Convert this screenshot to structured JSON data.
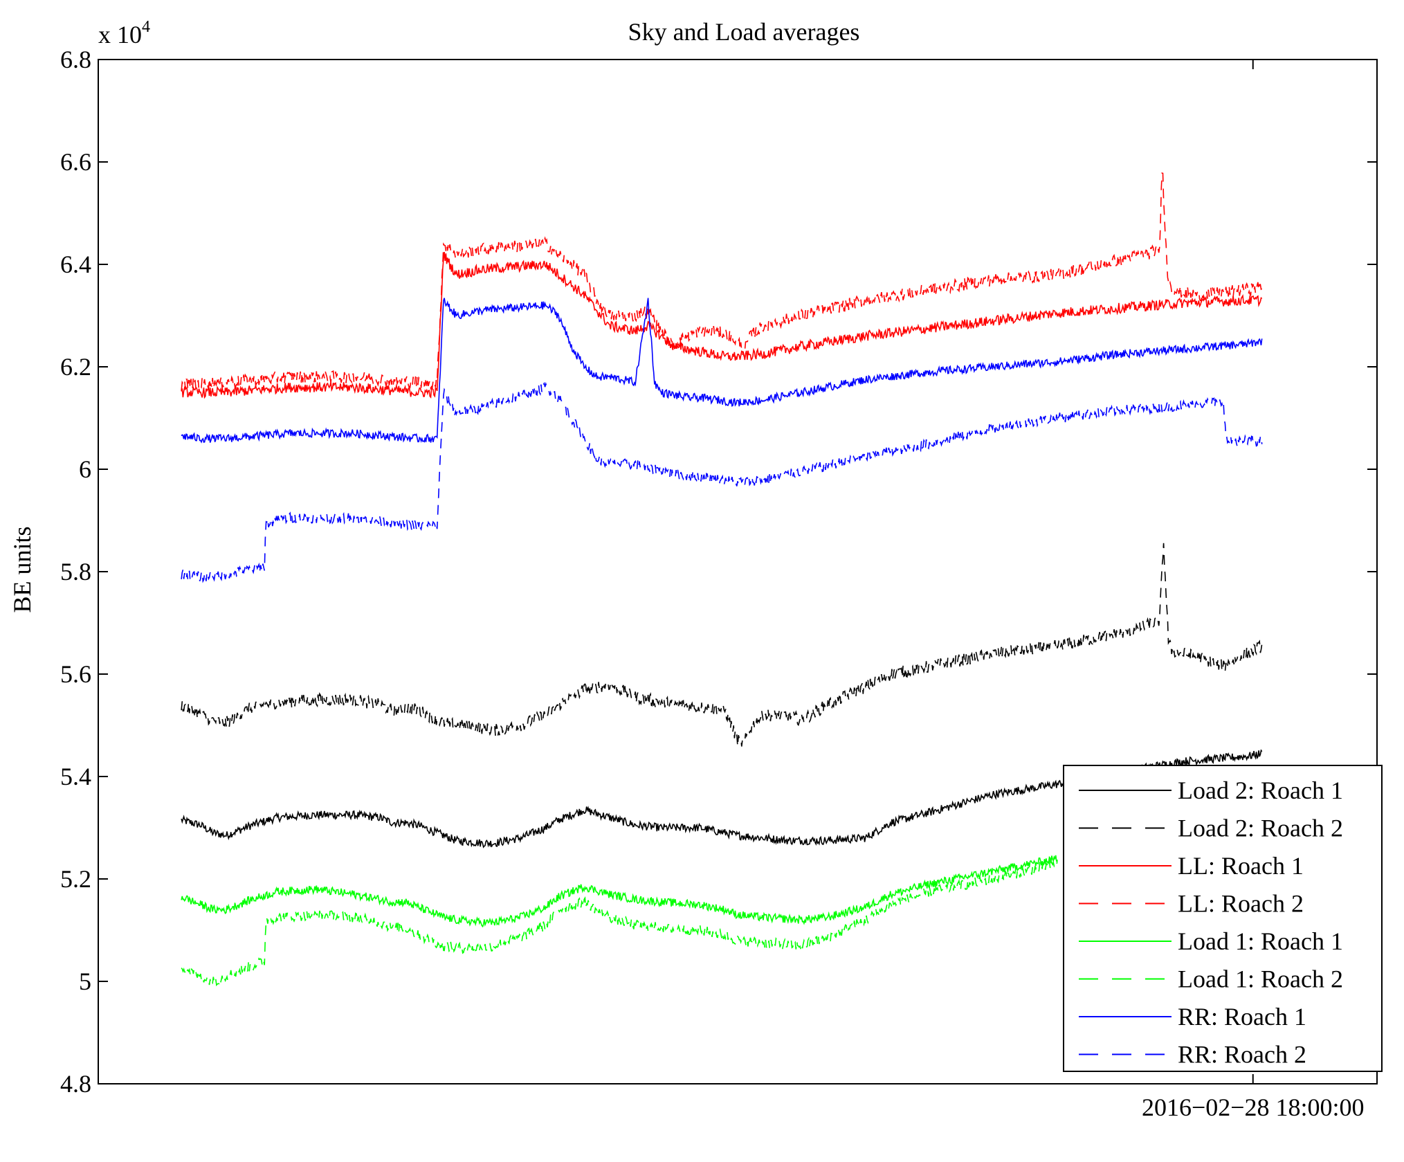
{
  "chart_data": {
    "type": "line",
    "title": "Sky and Load averages",
    "xlabel": "",
    "ylabel": "BE units",
    "y_exponent_label": "x 10",
    "y_exponent_power": "4",
    "ylim": [
      4.8,
      6.8
    ],
    "y_ticks": [
      4.8,
      5,
      5.2,
      5.4,
      5.6,
      5.8,
      6,
      6.2,
      6.4,
      6.6,
      6.8
    ],
    "y_tick_labels": [
      "4.8",
      "5",
      "5.2",
      "5.4",
      "5.6",
      "5.8",
      "6",
      "6.2",
      "6.4",
      "6.6",
      "6.8"
    ],
    "xlim": [
      0,
      100
    ],
    "x_ticks": [
      90.3
    ],
    "x_tick_labels": [
      "2016−02−28 18:00:00"
    ],
    "grid": false,
    "legend_position": "bottom-right",
    "series": [
      {
        "name": "Load 2: Roach 1",
        "color": "#000000",
        "dash": "solid",
        "noise": 0.008,
        "x": [
          6.5,
          8,
          9,
          10,
          12,
          14,
          17,
          20,
          22,
          23,
          24,
          25,
          27,
          28,
          30,
          31,
          33,
          35,
          36,
          38,
          40,
          42,
          44,
          47,
          49,
          50,
          52,
          54,
          55,
          57,
          60,
          62,
          65,
          70,
          75,
          80,
          85,
          90,
          91
        ],
        "y": [
          5.315,
          5.305,
          5.29,
          5.285,
          5.305,
          5.32,
          5.325,
          5.325,
          5.32,
          5.31,
          5.31,
          5.305,
          5.285,
          5.275,
          5.27,
          5.27,
          5.28,
          5.3,
          5.315,
          5.335,
          5.32,
          5.305,
          5.3,
          5.3,
          5.29,
          5.285,
          5.28,
          5.275,
          5.275,
          5.275,
          5.28,
          5.31,
          5.33,
          5.365,
          5.385,
          5.41,
          5.43,
          5.44,
          5.445
        ]
      },
      {
        "name": "Load 2: Roach 2",
        "color": "#000000",
        "dash": "dashed",
        "noise": 0.012,
        "x": [
          6.5,
          8,
          9,
          10,
          12,
          14,
          17,
          20,
          22,
          23,
          24,
          25,
          27,
          28,
          30,
          31,
          33,
          35,
          36,
          38,
          40,
          42,
          44,
          47,
          49,
          49.5,
          50,
          50.5,
          51,
          52,
          54,
          55,
          57,
          60,
          62,
          65,
          70,
          75,
          80,
          82,
          83,
          83.3,
          83.7,
          84,
          85,
          87,
          88,
          89,
          91
        ],
        "y": [
          5.54,
          5.52,
          5.51,
          5.505,
          5.535,
          5.545,
          5.55,
          5.55,
          5.54,
          5.53,
          5.535,
          5.53,
          5.505,
          5.5,
          5.495,
          5.49,
          5.5,
          5.52,
          5.54,
          5.57,
          5.58,
          5.555,
          5.545,
          5.535,
          5.53,
          5.5,
          5.47,
          5.465,
          5.495,
          5.52,
          5.52,
          5.51,
          5.54,
          5.575,
          5.6,
          5.615,
          5.64,
          5.655,
          5.68,
          5.695,
          5.705,
          5.86,
          5.66,
          5.645,
          5.64,
          5.625,
          5.615,
          5.63,
          5.655
        ]
      },
      {
        "name": "LL: Roach 1",
        "color": "#ff0000",
        "dash": "solid",
        "noise": 0.01,
        "x": [
          6.5,
          10,
          15,
          20,
          25,
          26.5,
          27,
          28,
          30,
          35,
          36,
          38,
          40,
          42,
          43,
          45,
          46,
          47,
          48,
          49,
          50,
          52,
          55,
          60,
          65,
          70,
          75,
          80,
          85,
          90,
          91
        ],
        "y": [
          6.15,
          6.15,
          6.16,
          6.16,
          6.15,
          6.15,
          6.42,
          6.38,
          6.39,
          6.4,
          6.38,
          6.34,
          6.28,
          6.27,
          6.28,
          6.24,
          6.235,
          6.23,
          6.225,
          6.22,
          6.22,
          6.225,
          6.24,
          6.26,
          6.275,
          6.29,
          6.305,
          6.315,
          6.325,
          6.33,
          6.33
        ]
      },
      {
        "name": "LL: Roach 2",
        "color": "#ff0000",
        "dash": "dashed",
        "noise": 0.012,
        "x": [
          6.5,
          10,
          15,
          20,
          25,
          26.5,
          27,
          28,
          30,
          35,
          36,
          38,
          39,
          40,
          42,
          43,
          44,
          45,
          46,
          47,
          48,
          49,
          50,
          50.5,
          51,
          52,
          55,
          60,
          65,
          70,
          75,
          80,
          82,
          83,
          83.2,
          83.6,
          84,
          86,
          88,
          91
        ],
        "y": [
          6.165,
          6.17,
          6.18,
          6.18,
          6.17,
          6.17,
          6.44,
          6.42,
          6.43,
          6.44,
          6.42,
          6.38,
          6.33,
          6.3,
          6.3,
          6.31,
          6.27,
          6.24,
          6.26,
          6.27,
          6.27,
          6.265,
          6.25,
          6.23,
          6.26,
          6.28,
          6.3,
          6.33,
          6.35,
          6.37,
          6.38,
          6.41,
          6.42,
          6.43,
          6.6,
          6.38,
          6.35,
          6.34,
          6.345,
          6.355
        ]
      },
      {
        "name": "Load 1: Roach 1",
        "color": "#00ff00",
        "dash": "solid",
        "noise": 0.008,
        "x": [
          6.5,
          8,
          9,
          10,
          12,
          14,
          17,
          20,
          22,
          23,
          24,
          25,
          27,
          28,
          30,
          31,
          33,
          35,
          36,
          38,
          40,
          42,
          44,
          47,
          49,
          50,
          52,
          55,
          57,
          60,
          62,
          65,
          70,
          75
        ],
        "y": [
          5.165,
          5.15,
          5.14,
          5.14,
          5.16,
          5.175,
          5.18,
          5.17,
          5.16,
          5.155,
          5.155,
          5.145,
          5.125,
          5.12,
          5.115,
          5.115,
          5.125,
          5.145,
          5.165,
          5.185,
          5.17,
          5.16,
          5.155,
          5.15,
          5.14,
          5.13,
          5.125,
          5.12,
          5.125,
          5.145,
          5.17,
          5.19,
          5.215,
          5.24
        ]
      },
      {
        "name": "Load 1: Roach 2",
        "color": "#00ff00",
        "dash": "dashed",
        "noise": 0.01,
        "x": [
          6.5,
          8,
          9,
          10,
          12,
          13,
          13.1,
          14,
          17,
          20,
          22,
          23,
          24,
          25,
          27,
          28,
          30,
          31,
          33,
          35,
          36,
          38,
          40,
          42,
          44,
          47,
          49,
          50,
          52,
          55,
          57,
          60,
          62,
          65,
          70,
          75
        ],
        "y": [
          5.03,
          5.01,
          5.0,
          5.01,
          5.03,
          5.04,
          5.12,
          5.125,
          5.13,
          5.125,
          5.115,
          5.105,
          5.105,
          5.09,
          5.07,
          5.065,
          5.065,
          5.07,
          5.085,
          5.11,
          5.14,
          5.155,
          5.125,
          5.11,
          5.105,
          5.1,
          5.09,
          5.08,
          5.075,
          5.07,
          5.085,
          5.12,
          5.15,
          5.175,
          5.2,
          5.23
        ]
      },
      {
        "name": "RR: Roach 1",
        "color": "#0000ff",
        "dash": "solid",
        "noise": 0.008,
        "x": [
          6.5,
          8,
          10,
          15,
          20,
          25,
          26.5,
          27,
          28,
          30,
          35,
          36,
          37,
          38,
          39,
          40,
          42,
          43,
          43.5,
          44,
          45,
          46,
          47,
          50,
          52,
          55,
          60,
          65,
          70,
          75,
          80,
          85,
          90,
          91
        ],
        "y": [
          6.065,
          6.06,
          6.06,
          6.07,
          6.07,
          6.06,
          6.06,
          6.33,
          6.3,
          6.31,
          6.32,
          6.3,
          6.24,
          6.2,
          6.18,
          6.18,
          6.17,
          6.33,
          6.17,
          6.15,
          6.145,
          6.14,
          6.14,
          6.13,
          6.135,
          6.15,
          6.175,
          6.19,
          6.2,
          6.21,
          6.225,
          6.235,
          6.245,
          6.25
        ]
      },
      {
        "name": "RR: Roach 2",
        "color": "#0000ff",
        "dash": "dashed",
        "noise": 0.01,
        "x": [
          6.5,
          8,
          10,
          12,
          13,
          13.1,
          15,
          20,
          25,
          26.5,
          27,
          28,
          30,
          35,
          36,
          37,
          38,
          39,
          40,
          42,
          43,
          43.5,
          44,
          45,
          47,
          50,
          52,
          55,
          60,
          65,
          70,
          75,
          80,
          85,
          87,
          88,
          88.2,
          91
        ],
        "y": [
          5.795,
          5.79,
          5.795,
          5.805,
          5.81,
          5.895,
          5.905,
          5.905,
          5.89,
          5.89,
          6.15,
          6.11,
          6.12,
          6.16,
          6.14,
          6.1,
          6.06,
          6.02,
          6.01,
          6.01,
          6.0,
          6.0,
          6.0,
          5.99,
          5.985,
          5.975,
          5.98,
          5.995,
          6.025,
          6.05,
          6.08,
          6.1,
          6.115,
          6.125,
          6.13,
          6.13,
          6.055,
          6.055
        ]
      }
    ]
  }
}
